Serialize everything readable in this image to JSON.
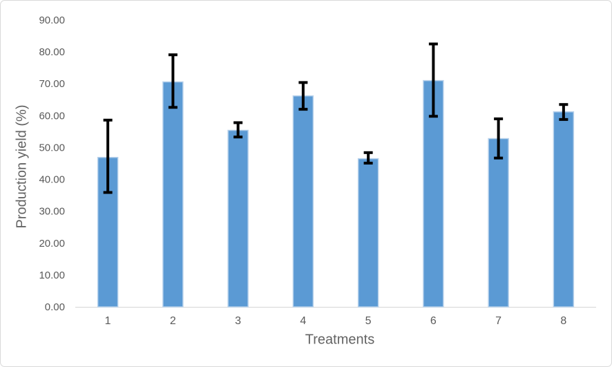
{
  "chart_data": {
    "type": "bar",
    "title": "",
    "categories": [
      "1",
      "2",
      "3",
      "4",
      "5",
      "6",
      "7",
      "8"
    ],
    "values": [
      46.9,
      70.6,
      55.4,
      66.2,
      46.5,
      71.0,
      52.8,
      61.2
    ],
    "error_bars": {
      "low": [
        35.9,
        62.6,
        53.3,
        62.0,
        45.1,
        59.8,
        46.7,
        58.8
      ],
      "high": [
        58.6,
        79.1,
        57.8,
        70.4,
        48.4,
        82.5,
        59.0,
        63.5
      ]
    },
    "xlabel": "Treatments",
    "ylabel": "Production yield (%)",
    "ylim": [
      0,
      90
    ],
    "ytick_step": 10,
    "yticks": [
      "0.00",
      "10.00",
      "20.00",
      "30.00",
      "40.00",
      "50.00",
      "60.00",
      "70.00",
      "80.00",
      "90.00"
    ],
    "grid": false,
    "legend": "none",
    "colors": {
      "bar_fill": "#5b9ad4",
      "bar_border": "#b7d1eb",
      "error_bar": "#000000",
      "axis_line": "#d6d6d6",
      "tick_label": "#595959",
      "axis_title": "#636363",
      "frame_border": "#d9d9d9"
    }
  }
}
